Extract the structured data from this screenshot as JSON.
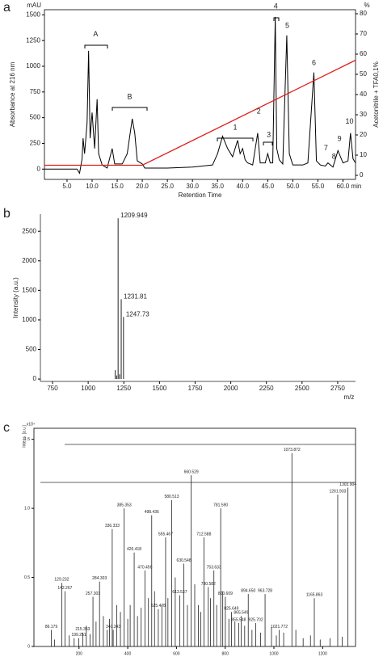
{
  "chart_data": [
    {
      "type": "line",
      "panel": "a",
      "x_label": "Retention Time",
      "x_unit": "min",
      "y_label": "Absorbance at 216 nm",
      "y_unit": "mAU",
      "y2_label": "Acetonitrile + TFA0,1%",
      "y2_unit": "%",
      "xlim": [
        0.5,
        62.5
      ],
      "xticks": [
        {
          "value": 5,
          "label": "5.0"
        },
        {
          "value": 10,
          "label": "10.0"
        },
        {
          "value": 15,
          "label": "15.0"
        },
        {
          "value": 20,
          "label": "20.0"
        },
        {
          "value": 25,
          "label": "25.0"
        },
        {
          "value": 30,
          "label": "30.0"
        },
        {
          "value": 35,
          "label": "35.0"
        },
        {
          "value": 40,
          "label": "40.0"
        },
        {
          "value": 45,
          "label": "45.0"
        },
        {
          "value": 50,
          "label": "50.0"
        },
        {
          "value": 55,
          "label": "55.0"
        },
        {
          "value": 60,
          "label": "60.0"
        }
      ],
      "ylim": [
        -100,
        1550
      ],
      "yticks": [
        0,
        250,
        500,
        750,
        1000,
        1250,
        1500
      ],
      "y2lim": [
        -2,
        82
      ],
      "y2ticks": [
        0,
        10,
        20,
        30,
        40,
        50,
        60,
        70,
        80
      ],
      "series": [
        {
          "color": "#000000",
          "x": [
            0.5,
            7,
            7.5,
            8,
            8.2,
            8.5,
            9.0,
            9.3,
            9.6,
            10.0,
            10.5,
            11.0,
            11.3,
            12,
            13,
            14,
            14.5,
            16,
            17,
            18,
            18.5,
            19,
            20,
            20.5,
            25,
            30,
            34,
            35,
            36,
            37,
            38,
            39,
            39.5,
            40,
            40.5,
            41,
            42,
            43,
            43.5,
            44.5,
            45,
            45.5,
            46,
            46.5,
            46.8,
            47.3,
            48,
            48.8,
            49.3,
            50,
            52,
            53,
            54.2,
            54.7,
            55.5,
            56.5,
            57,
            58,
            59,
            60,
            61,
            61.5,
            62,
            62.5
          ],
          "values": [
            0,
            0,
            -40,
            100,
            300,
            150,
            450,
            1150,
            300,
            550,
            200,
            680,
            150,
            40,
            10,
            200,
            50,
            50,
            150,
            490,
            350,
            80,
            50,
            10,
            10,
            20,
            40,
            150,
            320,
            200,
            120,
            280,
            150,
            200,
            90,
            60,
            40,
            350,
            60,
            60,
            150,
            60,
            60,
            1480,
            200,
            90,
            50,
            1300,
            150,
            40,
            40,
            60,
            940,
            80,
            40,
            30,
            60,
            20,
            180,
            60,
            80,
            350,
            100,
            60
          ]
        },
        {
          "color": "#e0201b",
          "axis": "y2",
          "x": [
            0.5,
            20,
            62.5
          ],
          "values": [
            5,
            5,
            57
          ]
        }
      ],
      "annotations": [
        {
          "text": "A",
          "x": 10.7,
          "y": 1310
        },
        {
          "text": "B",
          "x": 17.5,
          "y": 700
        },
        {
          "text": "1",
          "x": 38.5,
          "y": 400
        },
        {
          "text": "2",
          "x": 43.2,
          "y": 560
        },
        {
          "text": "3",
          "x": 45.2,
          "y": 330
        },
        {
          "text": "4",
          "x": 46.6,
          "y": 1580
        },
        {
          "text": "5",
          "x": 48.9,
          "y": 1390
        },
        {
          "text": "6",
          "x": 54.2,
          "y": 1030
        },
        {
          "text": "7",
          "x": 56.6,
          "y": 200
        },
        {
          "text": "8",
          "x": 58.2,
          "y": 120
        },
        {
          "text": "9",
          "x": 59.3,
          "y": 290
        },
        {
          "text": "10",
          "x": 61.3,
          "y": 460
        }
      ]
    },
    {
      "type": "stem",
      "panel": "b",
      "x_label": "m/z",
      "y_label": "Intensity (a.u.)",
      "xlim": [
        665,
        2875
      ],
      "xticks": [
        750,
        1000,
        1250,
        1500,
        1750,
        2000,
        2250,
        2500,
        2750
      ],
      "ylim": [
        -40,
        2790
      ],
      "yticks": [
        0,
        500,
        1000,
        1500,
        2000,
        2500
      ],
      "series": [
        {
          "color": "#222222",
          "labeled": true,
          "x": [
            1209.949,
            1231.81,
            1247.73
          ],
          "values": [
            2720,
            1350,
            1050
          ]
        },
        {
          "color": "#222222",
          "labeled": false,
          "x": [
            1190,
            1200,
            1220
          ],
          "values": [
            150,
            60,
            80
          ]
        }
      ]
    },
    {
      "type": "stem",
      "panel": "c",
      "y_label": "Intens. [a.u.]",
      "y_unit": "x10⁴",
      "xlim": [
        15,
        1335
      ],
      "xticks": [
        200,
        400,
        600,
        800,
        1000,
        1200
      ],
      "ylim": [
        0,
        1.58
      ],
      "yticks": [
        0,
        0.5,
        {
          "value": 1,
          "label": "1.0"
        },
        1.5
      ],
      "series": [
        {
          "color": "#222222",
          "labeled": true,
          "x": [
            86.179,
            129.232,
            142.267,
            199.251,
            215.353,
            257.303,
            284.303,
            336.333,
            340.343,
            385.353,
            426.418,
            470.456,
            498.436,
            525.478,
            555.467,
            580.513,
            613.537,
            630.548,
            660.529,
            712.588,
            730.582,
            753.633,
            {
              "value": 781.59,
              "label": "781.590"
            },
            800.609,
            825.649,
            855.548,
            865.549,
            {
              "value": 894.65,
              "label": "894.650"
            },
            925.702,
            963.728,
            1021.772,
            1073.872,
            1165.863,
            1261.933,
            1303.904
          ],
          "values": [
            0.12,
            0.46,
            0.4,
            0.06,
            0.1,
            0.36,
            0.47,
            0.85,
            0.12,
            1.0,
            0.68,
            0.55,
            0.95,
            0.27,
            0.79,
            1.06,
            0.37,
            0.6,
            1.24,
            0.79,
            0.43,
            0.55,
            1.0,
            0.36,
            0.25,
            0.17,
            0.22,
            0.38,
            0.17,
            0.38,
            0.12,
            1.4,
            0.35,
            1.1,
            1.15
          ]
        },
        {
          "color": "#222222",
          "labeled": false,
          "x": [
            100,
            160,
            180,
            230,
            245,
            270,
            300,
            315,
            325,
            355,
            370,
            400,
            410,
            440,
            455,
            485,
            510,
            540,
            565,
            595,
            645,
            675,
            690,
            700,
            740,
            765,
            790,
            815,
            840,
            880,
            910,
            945,
            990,
            1010,
            1040,
            1090,
            1120,
            1150,
            1190,
            1230,
            1280
          ],
          "values": [
            0.05,
            0.08,
            0.06,
            0.15,
            0.09,
            0.18,
            0.22,
            0.12,
            0.2,
            0.3,
            0.25,
            0.2,
            0.3,
            0.22,
            0.28,
            0.35,
            0.4,
            0.3,
            0.35,
            0.5,
            0.3,
            0.45,
            0.3,
            0.25,
            0.35,
            0.3,
            0.4,
            0.2,
            0.18,
            0.15,
            0.12,
            0.1,
            0.14,
            0.08,
            0.1,
            0.12,
            0.06,
            0.08,
            0.05,
            0.06,
            0.07
          ]
        }
      ]
    }
  ]
}
